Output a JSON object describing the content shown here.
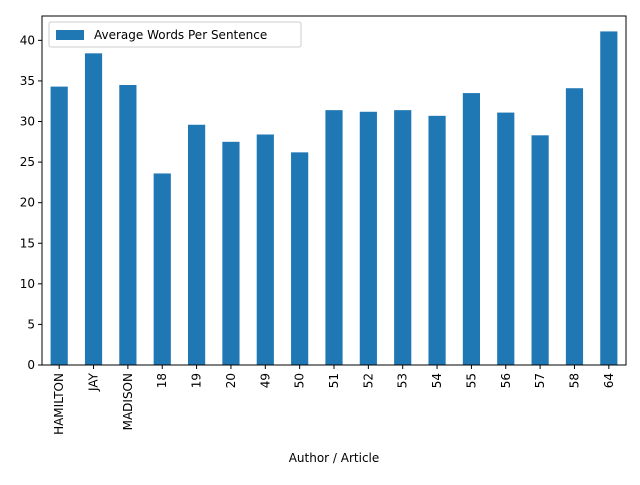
{
  "chart_data": {
    "type": "bar",
    "categories": [
      "HAMILTON",
      "JAY",
      "MADISON",
      "18",
      "19",
      "20",
      "49",
      "50",
      "51",
      "52",
      "53",
      "54",
      "55",
      "56",
      "57",
      "58",
      "64"
    ],
    "series": [
      {
        "name": "Average Words Per Sentence",
        "values": [
          34.3,
          38.4,
          34.5,
          23.6,
          29.6,
          27.5,
          28.4,
          26.2,
          31.4,
          31.2,
          31.4,
          30.7,
          33.5,
          31.1,
          28.3,
          34.1,
          41.1
        ],
        "color": "#1f77b4"
      }
    ],
    "xlabel": "Author / Article",
    "ylabel": "",
    "ylim": [
      0,
      43
    ],
    "yticks": [
      0,
      5,
      10,
      15,
      20,
      25,
      30,
      35,
      40
    ],
    "legend": "top-left",
    "grid": false
  }
}
